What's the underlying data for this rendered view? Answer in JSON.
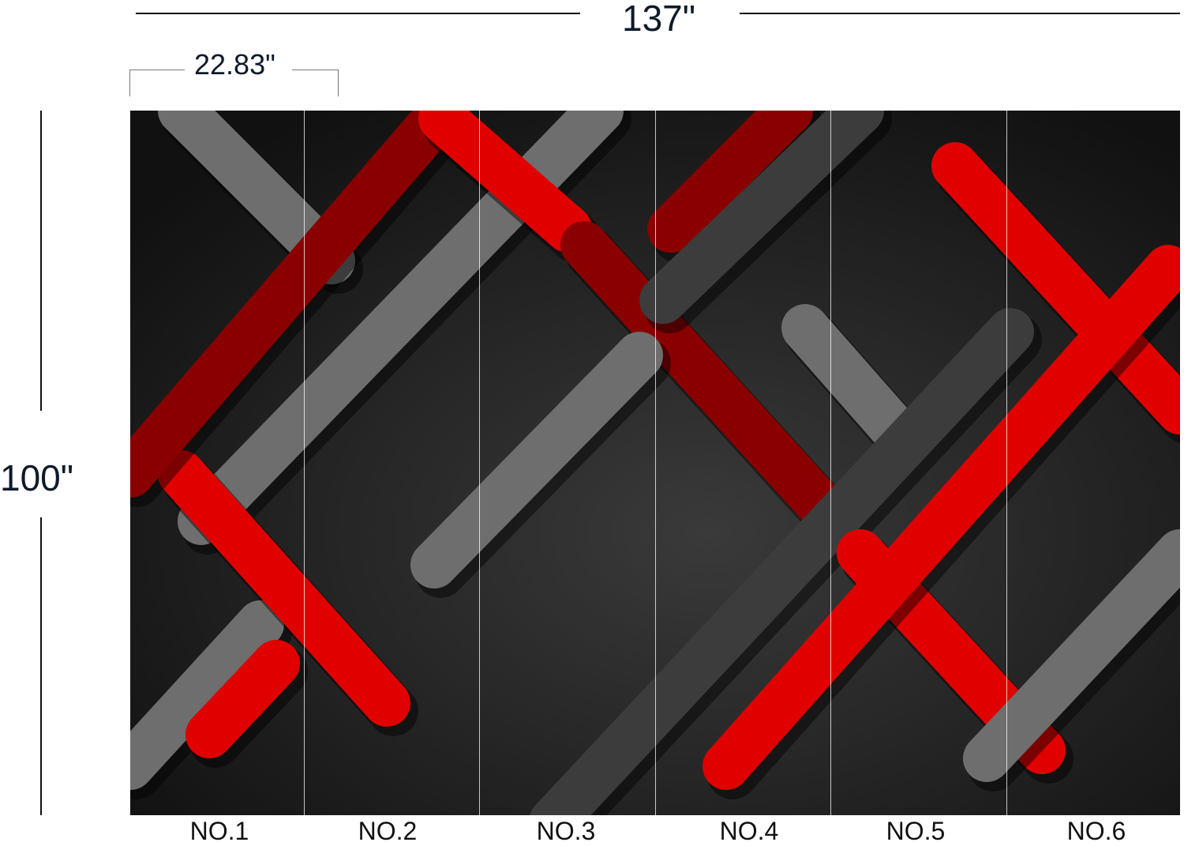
{
  "dimensions": {
    "total_width": "137\"",
    "total_height": "100\"",
    "panel_width": "22.83\""
  },
  "panels": [
    "NO.1",
    "NO.2",
    "NO.3",
    "NO.4",
    "NO.5",
    "NO.6"
  ],
  "colors": {
    "background": "#1a1a1a",
    "red": "#e00000",
    "dark_red": "#8a0000",
    "gray": "#6e6e6e",
    "dark_gray": "#3c3c3c"
  }
}
